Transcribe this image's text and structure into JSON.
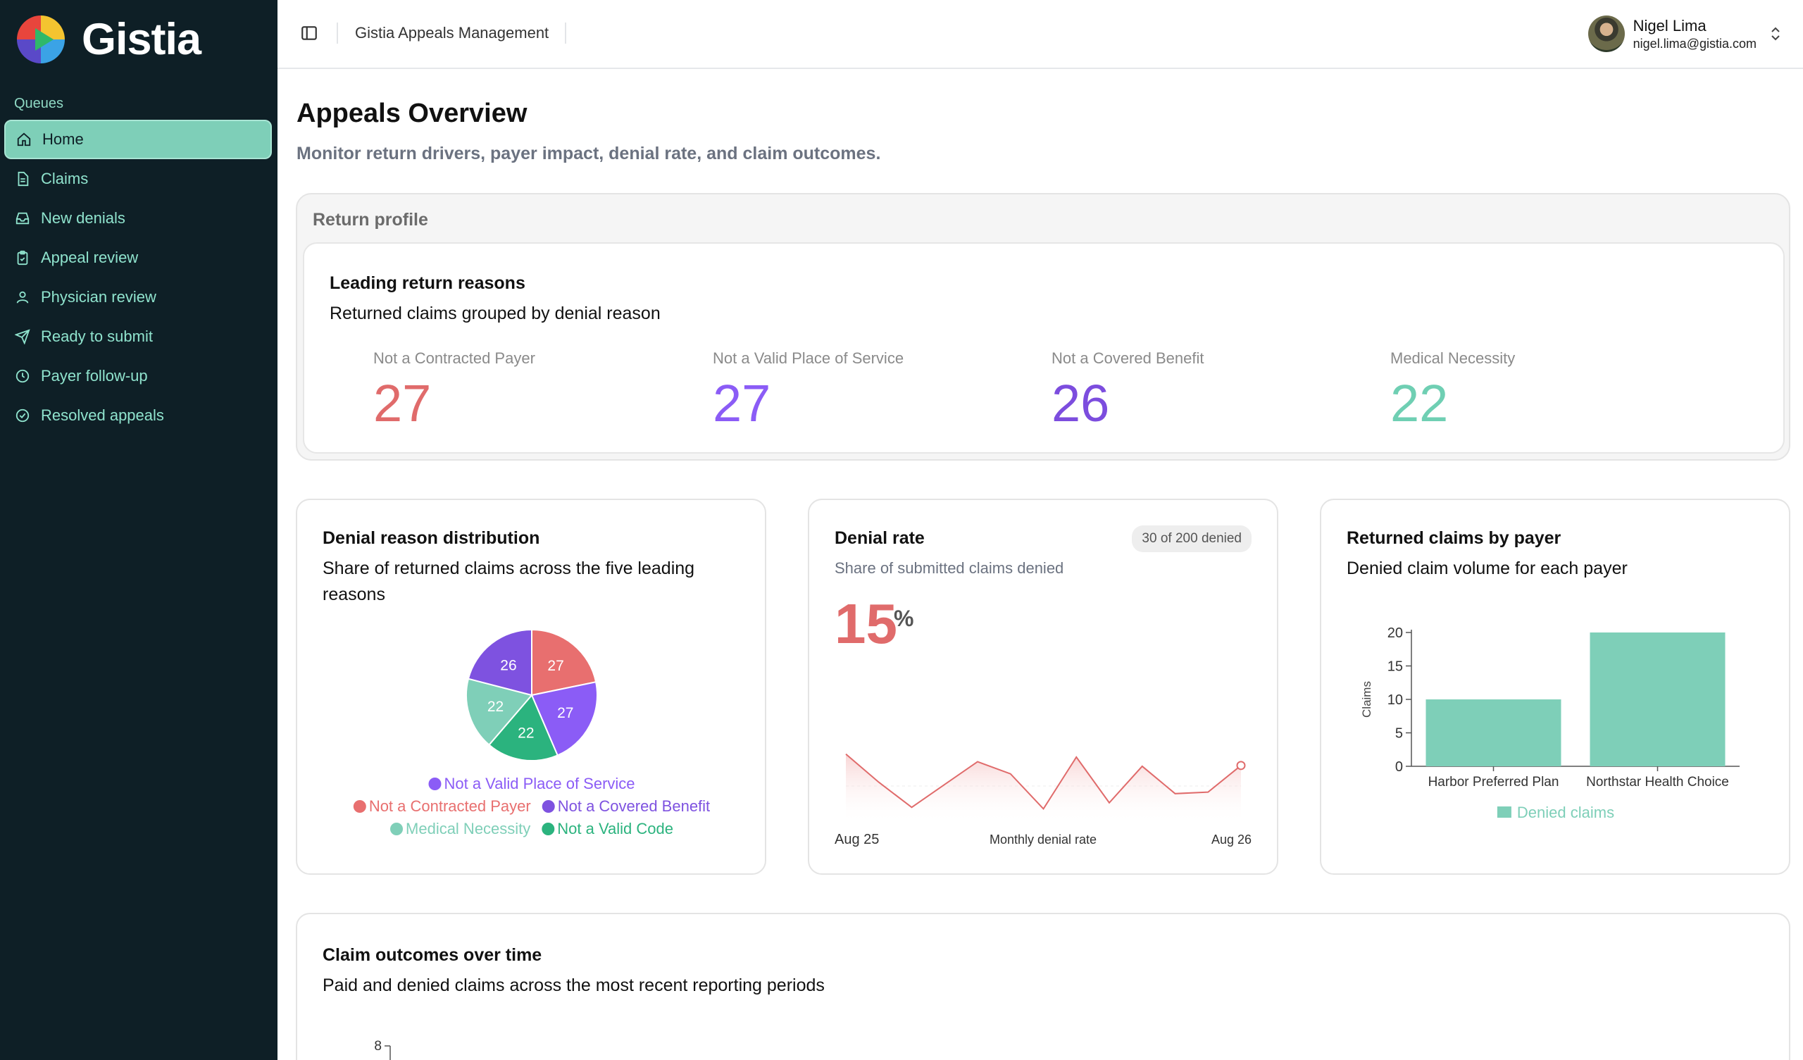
{
  "app": {
    "name": "Gistia",
    "header_title": "Gistia Appeals Management"
  },
  "user": {
    "name": "Nigel Lima",
    "email": "nigel.lima@gistia.com"
  },
  "sidebar": {
    "section_label": "Queues",
    "items": [
      {
        "label": "Home",
        "icon": "home-icon",
        "active": true
      },
      {
        "label": "Claims",
        "icon": "file-icon"
      },
      {
        "label": "New denials",
        "icon": "inbox-icon"
      },
      {
        "label": "Appeal review",
        "icon": "clipboard-check-icon"
      },
      {
        "label": "Physician review",
        "icon": "user-icon"
      },
      {
        "label": "Ready to submit",
        "icon": "send-icon"
      },
      {
        "label": "Payer follow-up",
        "icon": "clock-icon"
      },
      {
        "label": "Resolved appeals",
        "icon": "check-circle-icon"
      }
    ]
  },
  "page": {
    "title": "Appeals Overview",
    "subtitle": "Monitor return drivers, payer impact, denial rate, and claim outcomes."
  },
  "return_profile": {
    "section_label": "Return profile",
    "title": "Leading return reasons",
    "subtitle": "Returned claims grouped by denial reason",
    "kpis": [
      {
        "label": "Not a Contracted Payer",
        "value": "27",
        "color": "#e06b6b"
      },
      {
        "label": "Not a Valid Place of Service",
        "value": "27",
        "color": "#8b5cf6"
      },
      {
        "label": "Not a Covered Benefit",
        "value": "26",
        "color": "#7c4dde"
      },
      {
        "label": "Medical Necessity",
        "value": "22",
        "color": "#6fcfb3"
      }
    ]
  },
  "denial_distribution": {
    "title": "Denial reason distribution",
    "subtitle": "Share of returned claims across the five leading reasons"
  },
  "denial_rate": {
    "title": "Denial rate",
    "badge": "30 of 200 denied",
    "subtitle": "Share of submitted claims denied",
    "value": "15",
    "unit": "%",
    "x_start": "Aug 25",
    "x_mid": "Monthly denial rate",
    "x_end": "Aug 26"
  },
  "returned_by_payer": {
    "title": "Returned claims by payer",
    "subtitle": "Denied claim volume for each payer"
  },
  "claim_outcomes": {
    "title": "Claim outcomes over time",
    "subtitle": "Paid and denied claims across the most recent reporting periods",
    "y_top_tick": "8"
  },
  "chart_data": [
    {
      "type": "pie",
      "title": "Denial reason distribution",
      "series": [
        {
          "name": "Not a Contracted Payer",
          "value": 27,
          "color": "#e86f6f"
        },
        {
          "name": "Not a Valid Place of Service",
          "value": 27,
          "color": "#8b5cf6"
        },
        {
          "name": "Not a Valid Code",
          "value": 22,
          "color": "#2bb37e"
        },
        {
          "name": "Medical Necessity",
          "value": 22,
          "color": "#7fcfb8"
        },
        {
          "name": "Not a Covered Benefit",
          "value": 26,
          "color": "#7e52e0"
        }
      ],
      "legend_rows": [
        [
          "Not a Valid Place of Service"
        ],
        [
          "Not a Contracted Payer",
          "Not a Covered Benefit"
        ],
        [
          "Medical Necessity",
          "Not a Valid Code"
        ]
      ],
      "legend": "bottom"
    },
    {
      "type": "line",
      "title": "Denial rate",
      "xlabel": "Monthly denial rate",
      "x_range": [
        "Aug 25",
        "Aug 26"
      ],
      "values": [
        0.92,
        0.55,
        0.22,
        0.52,
        0.82,
        0.66,
        0.2,
        0.88,
        0.28,
        0.76,
        0.4,
        0.42,
        0.77
      ],
      "color": "#e06b6b",
      "grid": false
    },
    {
      "type": "bar",
      "title": "Returned claims by payer",
      "categories": [
        "Harbor Preferred Plan",
        "Northstar Health Choice"
      ],
      "series": [
        {
          "name": "Denied claims",
          "values": [
            10,
            20
          ],
          "color": "#7ecfb8"
        }
      ],
      "ylabel": "Claims",
      "ylim": [
        0,
        20
      ],
      "yticks": [
        0,
        5,
        10,
        15,
        20
      ],
      "legend": "bottom"
    }
  ]
}
